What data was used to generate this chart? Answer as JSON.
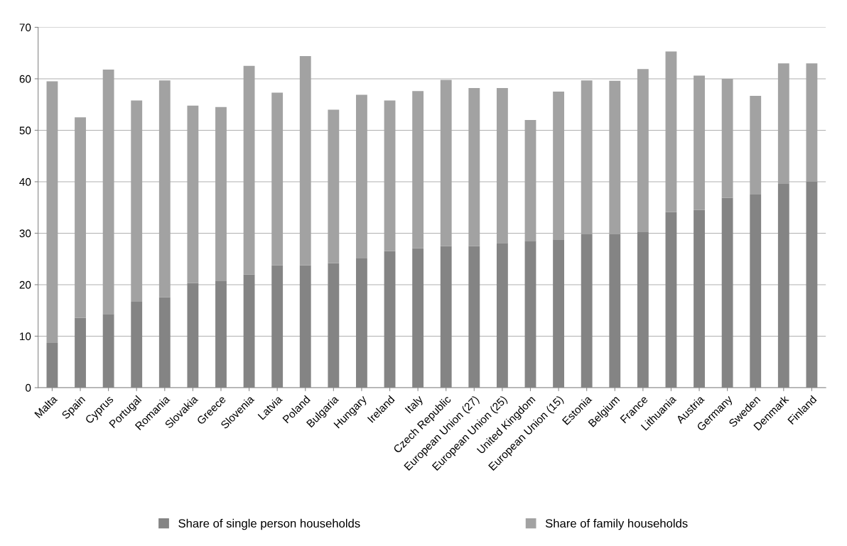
{
  "chart_data": {
    "type": "bar",
    "stacked": true,
    "categories": [
      "Malta",
      "Spain",
      "Cyprus",
      "Portugal",
      "Romania",
      "Slovakia",
      "Greece",
      "Slovenia",
      "Latvia",
      "Poland",
      "Bulgaria",
      "Hungary",
      "Ireland",
      "Italy",
      "Czech Republic",
      "European Union (27)",
      "European Union (25)",
      "United Kingdom",
      "European Union (15)",
      "Estonia",
      "Belgium",
      "France",
      "Lithuania",
      "Austria",
      "Germany",
      "Sweden",
      "Denmark",
      "Finland"
    ],
    "series": [
      {
        "name": "Share of single person households",
        "color": "#848484",
        "values": [
          8.7,
          13.6,
          14.3,
          16.7,
          17.6,
          20.3,
          20.8,
          22.0,
          23.8,
          23.8,
          24.2,
          25.1,
          26.5,
          27.1,
          27.5,
          27.5,
          28.1,
          28.5,
          28.8,
          29.8,
          29.9,
          30.2,
          34.1,
          34.5,
          36.9,
          37.5,
          39.7,
          40.0
        ]
      },
      {
        "name": "Share of family households",
        "color": "#a2a2a2",
        "values": [
          50.8,
          38.9,
          47.5,
          39.1,
          42.1,
          34.5,
          33.7,
          40.5,
          33.5,
          40.6,
          29.8,
          31.8,
          29.3,
          30.5,
          32.3,
          30.7,
          30.1,
          23.5,
          28.7,
          29.9,
          29.7,
          31.7,
          31.2,
          26.1,
          23.1,
          19.2,
          23.3,
          23.0
        ]
      }
    ],
    "ylim": [
      0,
      70
    ],
    "yticks": [
      0,
      10,
      20,
      30,
      40,
      50,
      60,
      70
    ],
    "grid": "y",
    "legend": "bottom"
  }
}
